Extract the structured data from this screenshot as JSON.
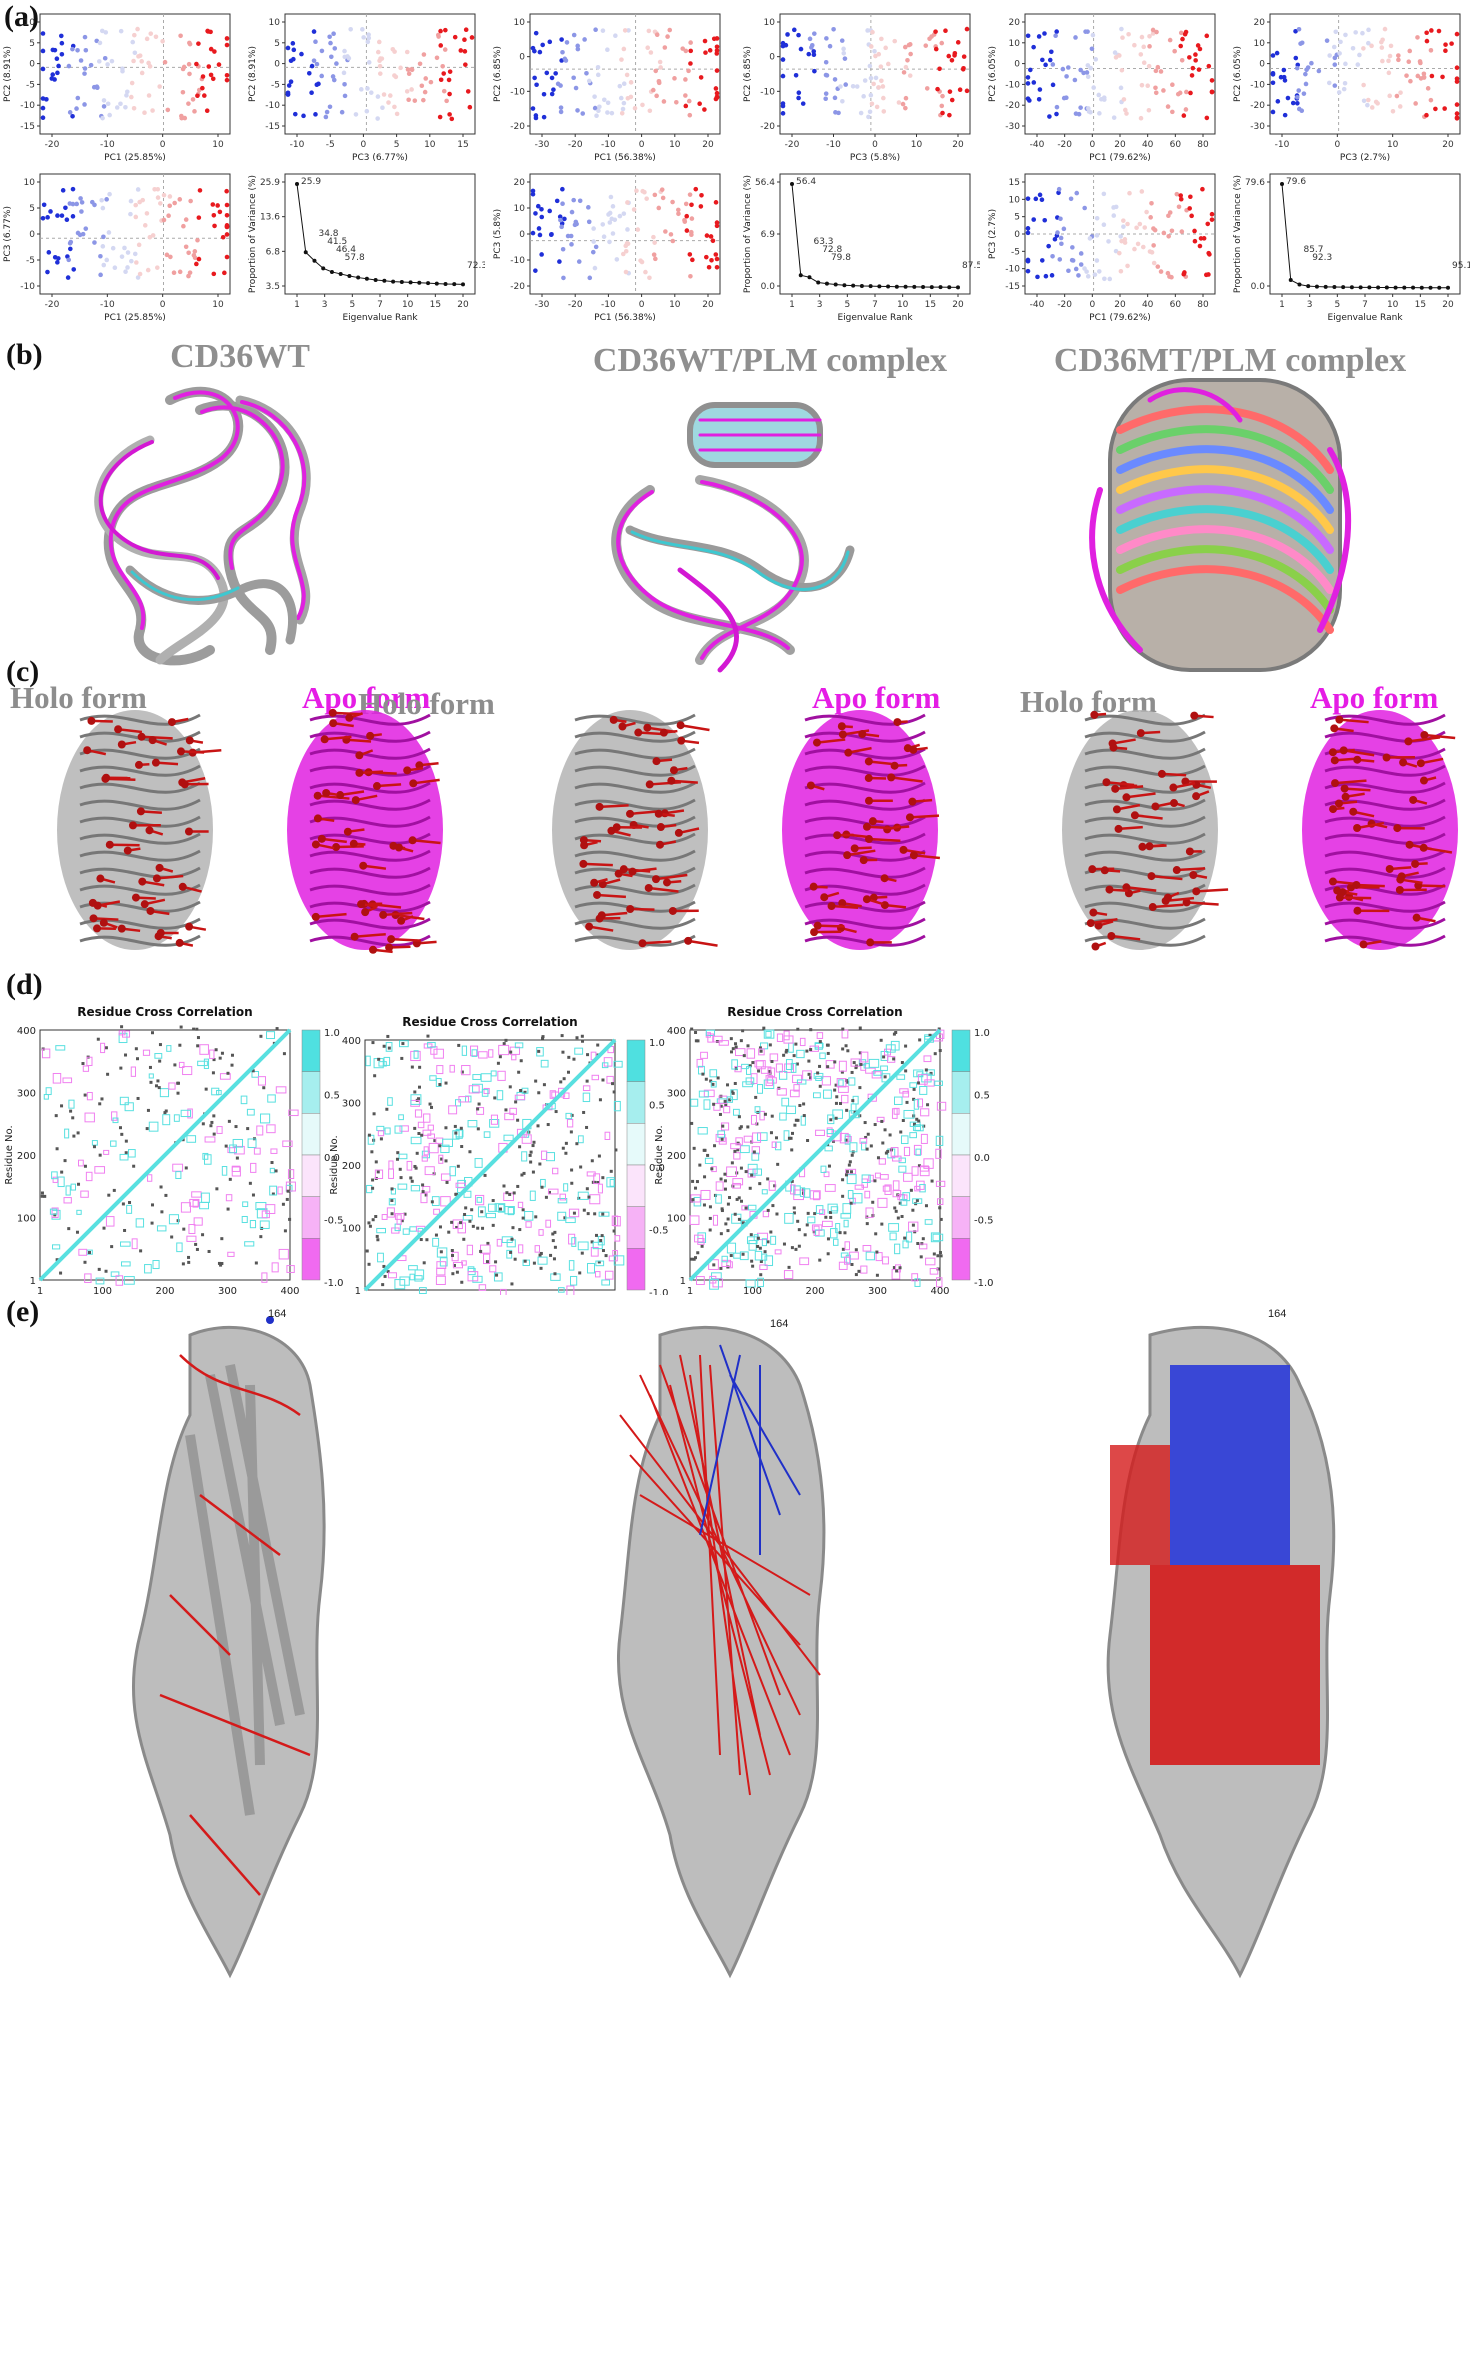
{
  "panel_labels": {
    "a": "(a)",
    "b": "(b)",
    "c": "(c)",
    "d": "(d)",
    "e": "(e)"
  },
  "panel_b": {
    "titles": [
      "CD36WT",
      "CD36WT/PLM complex",
      "CD36MT/PLM complex"
    ]
  },
  "panel_c": {
    "holo_label": "Holo form",
    "apo_label": "Apo form"
  },
  "panel_d": {
    "title": "Residue Cross Correlation",
    "xlabel": "Residue No.",
    "ylabel": "Residue No.",
    "ticks": [
      "1",
      "100",
      "200",
      "300",
      "400"
    ],
    "colorbar_ticks": [
      "1.0",
      "0.5",
      "0.0",
      "-0.5",
      "-1.0"
    ]
  },
  "panel_e": {
    "residue_labels": [
      "164",
      "164",
      "164"
    ]
  },
  "chart_data": [
    {
      "type": "scatter",
      "group": "CD36WT",
      "xlabel": "PC1 (25.85%)",
      "ylabel": "PC2 (8.91%)",
      "xticks": [
        "-20",
        "-10",
        "0",
        "10"
      ],
      "yticks": [
        "-15",
        "-10",
        "-5",
        "0",
        "5",
        "10"
      ],
      "xlim": [
        -26,
        14
      ],
      "ylim": [
        -15,
        12
      ]
    },
    {
      "type": "scatter",
      "group": "CD36WT",
      "xlabel": "PC3 (6.77%)",
      "ylabel": "PC2 (8.91%)",
      "xticks": [
        "-10",
        "-5",
        "0",
        "5",
        "10",
        "15"
      ],
      "yticks": [
        "-15",
        "-10",
        "-5",
        "0",
        "5",
        "10"
      ],
      "xlim": [
        -12,
        16
      ],
      "ylim": [
        -15,
        12
      ]
    },
    {
      "type": "scatter",
      "group": "CD36WT",
      "xlabel": "PC1 (25.85%)",
      "ylabel": "PC3 (6.77%)",
      "xticks": [
        "-20",
        "-10",
        "0",
        "10"
      ],
      "yticks": [
        "-10",
        "-5",
        "0",
        "5",
        "10"
      ],
      "xlim": [
        -26,
        14
      ],
      "ylim": [
        -13,
        15
      ]
    },
    {
      "type": "line",
      "group": "CD36WT",
      "xlabel": "Eigenvalue Rank",
      "ylabel": "Proportion of Variance (%)",
      "xticks": [
        "1",
        "3",
        "5",
        "7",
        "10",
        "15",
        "20"
      ],
      "yticks": [
        "3.5",
        "6.8",
        "13.6",
        "25.9"
      ],
      "x": [
        1,
        2,
        3,
        4,
        5,
        6,
        7,
        8,
        9,
        10,
        11,
        12,
        13,
        14,
        15,
        16,
        17,
        18,
        19,
        20
      ],
      "y": [
        25.9,
        8.9,
        6.8,
        4.9,
        4.0,
        3.5,
        3.0,
        2.6,
        2.3,
        2.0,
        1.8,
        1.6,
        1.5,
        1.4,
        1.3,
        1.2,
        1.1,
        1.0,
        0.95,
        0.9
      ],
      "annotations": [
        "25.9",
        "34.8",
        "41.5",
        "46.4",
        "57.8",
        "72.3"
      ]
    },
    {
      "type": "scatter",
      "group": "CD36WT/PLM complex",
      "xlabel": "PC1 (56.38%)",
      "ylabel": "PC2 (6.85%)",
      "xticks": [
        "-30",
        "-20",
        "-10",
        "0",
        "10",
        "20"
      ],
      "yticks": [
        "-20",
        "-10",
        "0",
        "10"
      ],
      "xlim": [
        -35,
        28
      ],
      "ylim": [
        -20,
        17
      ]
    },
    {
      "type": "scatter",
      "group": "CD36WT/PLM complex",
      "xlabel": "PC3 (5.8%)",
      "ylabel": "PC2 (6.85%)",
      "xticks": [
        "-20",
        "-10",
        "0",
        "10",
        "20"
      ],
      "yticks": [
        "-20",
        "-10",
        "0",
        "10"
      ],
      "xlim": [
        -22,
        24
      ],
      "ylim": [
        -20,
        17
      ]
    },
    {
      "type": "scatter",
      "group": "CD36WT/PLM complex",
      "xlabel": "PC1 (56.38%)",
      "ylabel": "PC3 (5.8%)",
      "xticks": [
        "-30",
        "-20",
        "-10",
        "0",
        "10",
        "20"
      ],
      "yticks": [
        "-20",
        "-10",
        "0",
        "10",
        "20"
      ],
      "xlim": [
        -35,
        28
      ],
      "ylim": [
        -20,
        25
      ]
    },
    {
      "type": "line",
      "group": "CD36WT/PLM complex",
      "xlabel": "Eigenvalue Rank",
      "ylabel": "Proportion of Variance (%)",
      "xticks": [
        "1",
        "3",
        "5",
        "7",
        "10",
        "15",
        "20"
      ],
      "yticks": [
        "0.0",
        "6.9",
        "56.4"
      ],
      "x": [
        1,
        2,
        3,
        4,
        5,
        6,
        7,
        8,
        9,
        10,
        11,
        12,
        13,
        14,
        15,
        16,
        17,
        18,
        19,
        20
      ],
      "y": [
        56.4,
        6.9,
        5.8,
        3.0,
        2.4,
        1.9,
        1.5,
        1.3,
        1.1,
        1.0,
        0.9,
        0.8,
        0.7,
        0.65,
        0.6,
        0.55,
        0.5,
        0.45,
        0.4,
        0.35
      ],
      "annotations": [
        "56.4",
        "63.3",
        "72.8",
        "79.8",
        "87.5"
      ]
    },
    {
      "type": "scatter",
      "group": "CD36MT/PLM complex",
      "xlabel": "PC1 (79.62%)",
      "ylabel": "PC2 (6.05%)",
      "xticks": [
        "-40",
        "-20",
        "0",
        "20",
        "40",
        "60",
        "80"
      ],
      "yticks": [
        "-30",
        "-20",
        "-10",
        "0",
        "10",
        "20"
      ],
      "xlim": [
        -48,
        85
      ],
      "ylim": [
        -30,
        25
      ]
    },
    {
      "type": "scatter",
      "group": "CD36MT/PLM complex",
      "xlabel": "PC3 (2.7%)",
      "ylabel": "PC2 (6.05%)",
      "xticks": [
        "-10",
        "0",
        "10",
        "20"
      ],
      "yticks": [
        "-30",
        "-20",
        "-10",
        "0",
        "10",
        "20"
      ],
      "xlim": [
        -13,
        23
      ],
      "ylim": [
        -30,
        25
      ]
    },
    {
      "type": "scatter",
      "group": "CD36MT/PLM complex",
      "xlabel": "PC1 (79.62%)",
      "ylabel": "PC3 (2.7%)",
      "xticks": [
        "-40",
        "-20",
        "0",
        "20",
        "40",
        "60",
        "80"
      ],
      "yticks": [
        "-15",
        "-10",
        "-5",
        "0",
        "5",
        "10",
        "15"
      ],
      "xlim": [
        -48,
        85
      ],
      "ylim": [
        -15,
        15
      ]
    },
    {
      "type": "line",
      "group": "CD36MT/PLM complex",
      "xlabel": "Eigenvalue Rank",
      "ylabel": "Proportion of Variance (%)",
      "xticks": [
        "1",
        "3",
        "5",
        "7",
        "10",
        "15",
        "20"
      ],
      "yticks": [
        "0.0",
        "79.6"
      ],
      "x": [
        1,
        2,
        3,
        4,
        5,
        6,
        7,
        8,
        9,
        10,
        11,
        12,
        13,
        14,
        15,
        16,
        17,
        18,
        19,
        20
      ],
      "y": [
        79.6,
        6.1,
        2.7,
        1.4,
        1.1,
        0.9,
        0.8,
        0.7,
        0.6,
        0.5,
        0.45,
        0.4,
        0.35,
        0.3,
        0.3,
        0.25,
        0.2,
        0.2,
        0.2,
        0.15
      ],
      "annotations": [
        "79.6",
        "85.7",
        "92.3",
        "95.1"
      ]
    }
  ],
  "colors": {
    "blue": "#1f2fd8",
    "light_blue": "#8c96e6",
    "red": "#e8191e",
    "light_red": "#f0a0a0",
    "protein_gray": "#a8a8a8",
    "magenta": "#e020e0",
    "cyan": "#3ec8d0",
    "arrow_red": "#c81414",
    "dccm_cyan": "#58e0e0",
    "dccm_pink": "#f080f0"
  }
}
